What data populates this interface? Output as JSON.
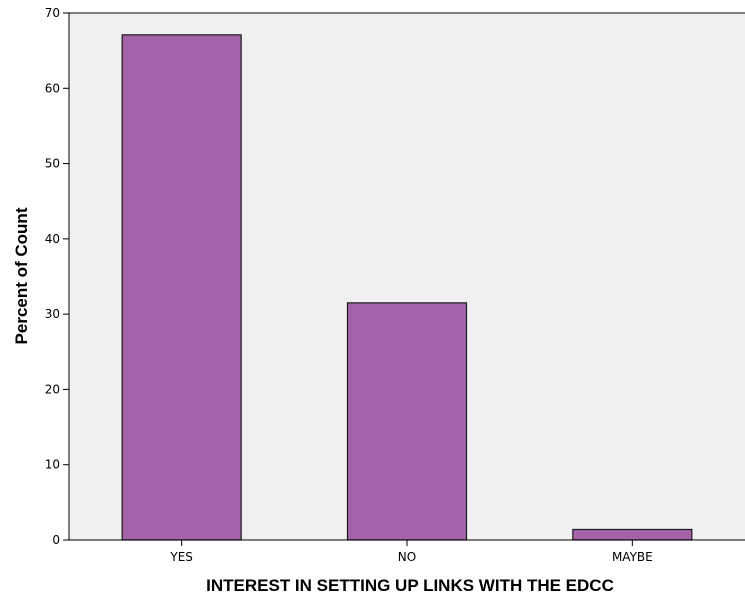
{
  "chart_data": {
    "type": "bar",
    "title": "",
    "xlabel": "INTEREST IN SETTING UP LINKS WITH THE EDCC",
    "ylabel": "Percent of Count",
    "categories": [
      "YES",
      "NO",
      "MAYBE"
    ],
    "values": [
      67.1,
      31.5,
      1.4
    ],
    "ylim": [
      0,
      70
    ],
    "yticks": [
      "0",
      "10",
      "20",
      "30",
      "40",
      "50",
      "60",
      "70"
    ],
    "grid": false,
    "legend": "none",
    "colors": {
      "bar_fill": "#a463a9",
      "bar_stroke": "#1a1a1a",
      "plot_background": "#f0f0f0",
      "axis": "#000000"
    }
  }
}
